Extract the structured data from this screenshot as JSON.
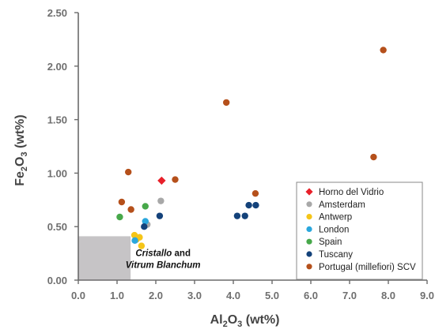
{
  "chart_data": {
    "type": "scatter",
    "xlabel": {
      "main": "Al",
      "sub1": "2",
      "mid": "O",
      "sub2": "3",
      "rest": " (wt%)"
    },
    "ylabel": {
      "main": "Fe",
      "sub1": "2",
      "mid": "O",
      "sub2": "3",
      "rest": " (wt%)"
    },
    "xlim": [
      0,
      9
    ],
    "ylim": [
      0,
      2.5
    ],
    "x_ticks": [
      "0.0",
      "1.0",
      "2.0",
      "3.0",
      "4.0",
      "5.0",
      "6.0",
      "7.0",
      "8.0",
      "9.0"
    ],
    "y_ticks": [
      "0.00",
      "0.50",
      "1.00",
      "1.50",
      "2.00",
      "2.50"
    ],
    "x_tick_values": [
      0,
      1,
      2,
      3,
      4,
      5,
      6,
      7,
      8,
      9
    ],
    "y_tick_values": [
      0,
      0.5,
      1,
      1.5,
      2,
      2.5
    ],
    "grid": false,
    "legend_position": "bottom-right",
    "region": {
      "x": [
        0,
        1.35
      ],
      "y": [
        0,
        0.41
      ],
      "color": "#c6c4c6"
    },
    "annotation": {
      "line1_italic": "Cristallo",
      "line1_plain": " and",
      "line2": "Vitrum Blanchum",
      "x": 1.35,
      "y": 0.12
    },
    "series": [
      {
        "name": "Horno del Vidrio",
        "marker": "diamond",
        "color": "#e8202a",
        "points": [
          [
            2.15,
            0.93
          ]
        ]
      },
      {
        "name": "Amsterdam",
        "marker": "circle",
        "color": "#a8a8a8",
        "points": [
          [
            2.13,
            0.74
          ],
          [
            1.78,
            0.52
          ]
        ]
      },
      {
        "name": "Antwerp",
        "marker": "circle",
        "color": "#f5c518",
        "points": [
          [
            1.45,
            0.42
          ],
          [
            1.58,
            0.4
          ],
          [
            1.63,
            0.32
          ],
          [
            1.5,
            0.38
          ]
        ]
      },
      {
        "name": "London",
        "marker": "circle",
        "color": "#2aa7dd",
        "points": [
          [
            1.73,
            0.55
          ],
          [
            1.46,
            0.37
          ]
        ]
      },
      {
        "name": "Spain",
        "marker": "circle",
        "color": "#47a84a",
        "points": [
          [
            1.07,
            0.59
          ],
          [
            1.73,
            0.69
          ]
        ]
      },
      {
        "name": "Tuscany",
        "marker": "circle",
        "color": "#14427a",
        "points": [
          [
            1.7,
            0.5
          ],
          [
            2.1,
            0.6
          ],
          [
            4.1,
            0.6
          ],
          [
            4.3,
            0.6
          ],
          [
            4.4,
            0.7
          ],
          [
            4.58,
            0.7
          ]
        ]
      },
      {
        "name": "Portugal (millefiori) SCV",
        "marker": "circle",
        "color": "#b5501b",
        "points": [
          [
            1.29,
            1.01
          ],
          [
            1.12,
            0.73
          ],
          [
            1.36,
            0.66
          ],
          [
            2.5,
            0.94
          ],
          [
            3.82,
            1.66
          ],
          [
            4.57,
            0.81
          ],
          [
            7.62,
            1.15
          ],
          [
            7.87,
            2.15
          ]
        ]
      }
    ]
  }
}
